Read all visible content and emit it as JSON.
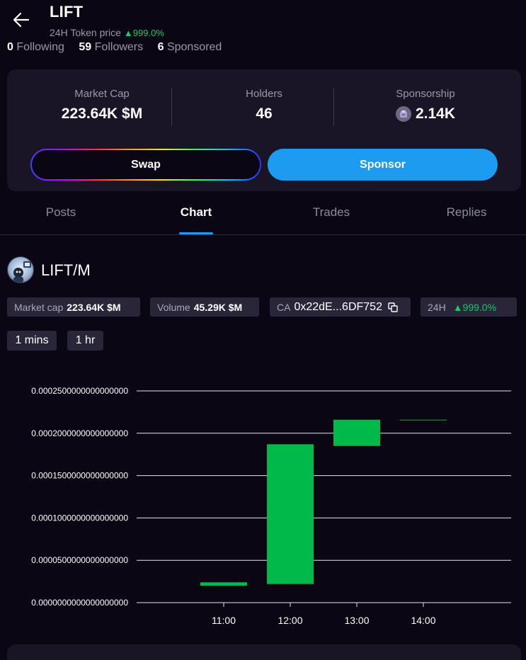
{
  "header": {
    "title": "LIFT",
    "subtitle_label": "24H Token price",
    "subtitle_change": "▲999.0%",
    "following_count": "0",
    "following_label": "Following",
    "followers_count": "59",
    "followers_label": "Followers",
    "sponsored_count": "6",
    "sponsored_label": "Sponsored"
  },
  "stats": {
    "market_cap_label": "Market Cap",
    "market_cap_value": "223.64K $M",
    "holders_label": "Holders",
    "holders_value": "46",
    "sponsorship_label": "Sponsorship",
    "sponsorship_value": "2.14K"
  },
  "actions": {
    "swap_label": "Swap",
    "sponsor_label": "Sponsor"
  },
  "tabs": [
    {
      "label": "Posts"
    },
    {
      "label": "Chart"
    },
    {
      "label": "Trades"
    },
    {
      "label": "Replies"
    }
  ],
  "pair": {
    "name": "LIFT/M",
    "market_cap_label": "Market cap",
    "market_cap_value": "223.64K $M",
    "volume_label": "Volume",
    "volume_value": "45.29K $M",
    "ca_label": "CA",
    "ca_value": "0x22dE...6DF752",
    "change_label": "24H",
    "change_value": "▲999.0%"
  },
  "intervals": [
    "1 mins",
    "1 hr"
  ],
  "colors": {
    "background": "#0a0614",
    "card": "#191527",
    "accent": "#1d9bf0",
    "positive": "#17c964",
    "candle_up": "#00b94a"
  },
  "chart_data": {
    "type": "candlestick",
    "categories": [
      "11:00",
      "12:00",
      "13:00",
      "14:00"
    ],
    "y_ticks": [
      "0.0000000000000000000",
      "0.0000500000000000000",
      "0.0001000000000000000",
      "0.0001500000000000000",
      "0.0002000000000000000",
      "0.0002500000000000000"
    ],
    "ylim": [
      0,
      0.00025
    ],
    "candles": [
      {
        "x": "11:00",
        "open": 2e-05,
        "close": 2.4e-05,
        "high": 2.4e-05,
        "low": 2e-05
      },
      {
        "x": "12:00",
        "open": 2.2e-05,
        "close": 0.000187,
        "high": 0.000187,
        "low": 2.2e-05
      },
      {
        "x": "13:00",
        "open": 0.000185,
        "close": 0.000216,
        "high": 0.000216,
        "low": 0.000185
      },
      {
        "x": "14:00",
        "open": 0.000216,
        "close": 0.000216,
        "high": 0.000216,
        "low": 0.000216
      }
    ],
    "grid": true
  }
}
